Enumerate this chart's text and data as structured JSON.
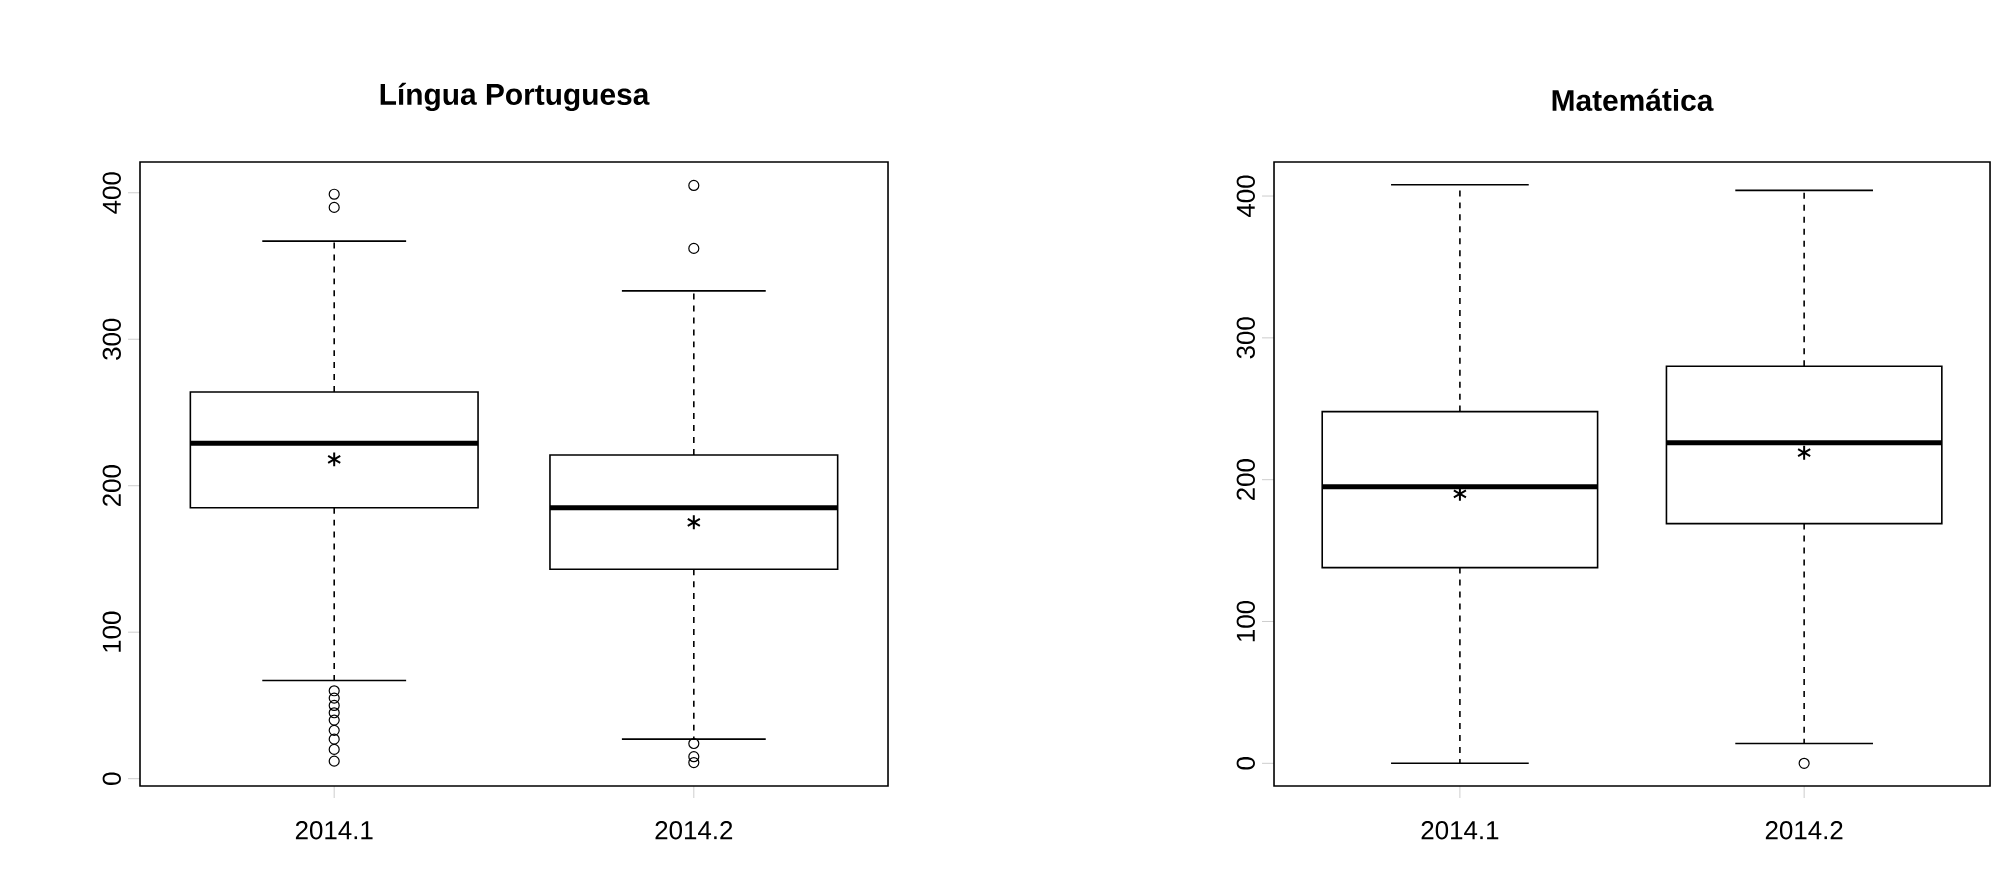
{
  "chart_data": [
    {
      "type": "box",
      "title": "Língua Portuguesa",
      "categories": [
        "2014.1",
        "2014.2"
      ],
      "boxes": [
        {
          "low": 67,
          "q1": 185,
          "median": 229,
          "q3": 264,
          "high": 367,
          "mean": 218,
          "outliers": [
            390,
            399,
            12,
            20,
            27,
            33,
            40,
            45,
            50,
            55,
            60
          ]
        },
        {
          "low": 27,
          "q1": 143,
          "median": 185,
          "q3": 221,
          "high": 333,
          "mean": 175,
          "outliers": [
            362,
            405,
            24,
            15,
            11
          ]
        }
      ],
      "ylim": [
        -5,
        421
      ],
      "yticks": [
        0,
        100,
        200,
        300,
        400
      ]
    },
    {
      "type": "box",
      "title": "Matemática",
      "categories": [
        "2014.1",
        "2014.2"
      ],
      "boxes": [
        {
          "low": 0,
          "q1": 138,
          "median": 195,
          "q3": 248,
          "high": 408,
          "mean": 190
        },
        {
          "low": 14,
          "q1": 169,
          "median": 226,
          "q3": 280,
          "high": 404,
          "mean": 219,
          "outliers": [
            0
          ]
        }
      ],
      "ylim": [
        -16,
        424
      ],
      "yticks": [
        0,
        100,
        200,
        300,
        400
      ]
    }
  ]
}
